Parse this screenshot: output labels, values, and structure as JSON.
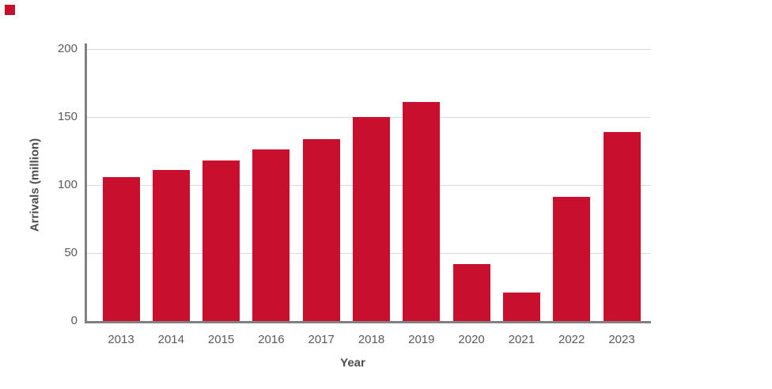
{
  "colors": {
    "background": "#FFFFFF",
    "bar": "#C8102E",
    "gridline": "#D9D9D9",
    "axis": "#808080",
    "tick_text": "#58595B",
    "axis_title_text": "#4D4D4D",
    "corner_mark": "#C8102E"
  },
  "corner_mark": {
    "name": "red-square-mark"
  },
  "chart_data": {
    "type": "bar",
    "title": "",
    "categories": [
      "2013",
      "2014",
      "2015",
      "2016",
      "2017",
      "2018",
      "2019",
      "2020",
      "2021",
      "2022",
      "2023"
    ],
    "values": [
      106,
      111,
      118,
      126,
      134,
      150,
      161,
      42,
      21,
      91,
      139
    ],
    "xlabel": "Year",
    "ylabel": "Arrivals (million)",
    "ylim": [
      0,
      200
    ],
    "yticks": [
      0,
      50,
      100,
      150,
      200
    ],
    "grid": true,
    "legend_position": "none",
    "bar_color": "#C8102E"
  }
}
